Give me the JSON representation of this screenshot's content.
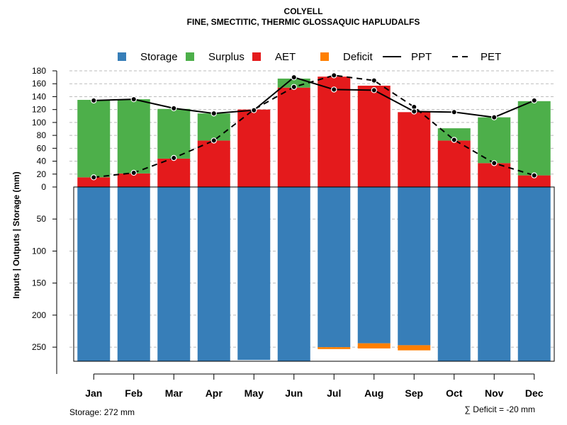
{
  "chart_data": {
    "type": "bar",
    "title": "COLYELL",
    "subtitle": "FINE, SMECTITIC, THERMIC GLOSSAQUIC HAPLUDALFS",
    "ylabel": "Inputs | Outputs | Storage     (mm)",
    "categories": [
      "Jan",
      "Feb",
      "Mar",
      "Apr",
      "May",
      "Jun",
      "Jul",
      "Aug",
      "Sep",
      "Oct",
      "Nov",
      "Dec"
    ],
    "upper_ylim": [
      0,
      180
    ],
    "upper_ticks": [
      "0",
      "20",
      "40",
      "60",
      "80",
      "100",
      "120",
      "140",
      "160",
      "180"
    ],
    "lower_ylim": [
      0,
      272
    ],
    "lower_ticks": [
      "50",
      "100",
      "150",
      "200",
      "250"
    ],
    "series": [
      {
        "name": "AET",
        "color": "#E41A1C",
        "values": [
          15,
          21,
          44,
          72,
          120,
          154,
          171,
          157,
          116,
          72,
          37,
          18
        ]
      },
      {
        "name": "Surplus",
        "color": "#4DAF4A",
        "values": [
          120,
          115,
          77,
          42,
          0,
          14,
          0,
          0,
          0,
          19,
          71,
          115
        ]
      },
      {
        "name": "Storage",
        "color": "#377EB8",
        "values": [
          272,
          272,
          272,
          272,
          270,
          272,
          250,
          244,
          247,
          272,
          272,
          272
        ]
      },
      {
        "name": "Deficit",
        "color": "#FF7F00",
        "values": [
          0,
          0,
          0,
          0,
          0,
          0,
          3,
          8,
          8,
          0,
          0,
          0
        ]
      },
      {
        "name": "PPT",
        "style": "solid",
        "values": [
          134,
          136,
          122,
          114,
          119,
          170,
          151,
          150,
          117,
          116,
          108,
          134
        ]
      },
      {
        "name": "PET",
        "style": "dashed",
        "values": [
          15,
          22,
          45,
          72,
          120,
          155,
          173,
          165,
          124,
          73,
          37,
          18
        ]
      }
    ],
    "legend": [
      {
        "label": "Storage",
        "kind": "box",
        "color": "#377EB8"
      },
      {
        "label": "Surplus",
        "kind": "box",
        "color": "#4DAF4A"
      },
      {
        "label": "AET",
        "kind": "box",
        "color": "#E41A1C"
      },
      {
        "label": "Deficit",
        "kind": "box",
        "color": "#FF7F00"
      },
      {
        "label": "PPT",
        "kind": "solid"
      },
      {
        "label": "PET",
        "kind": "dashed"
      }
    ],
    "legend_position": "top",
    "grid": true,
    "storage_note": "Storage: 272 mm",
    "deficit_note": "∑ Deficit = -20 mm"
  }
}
